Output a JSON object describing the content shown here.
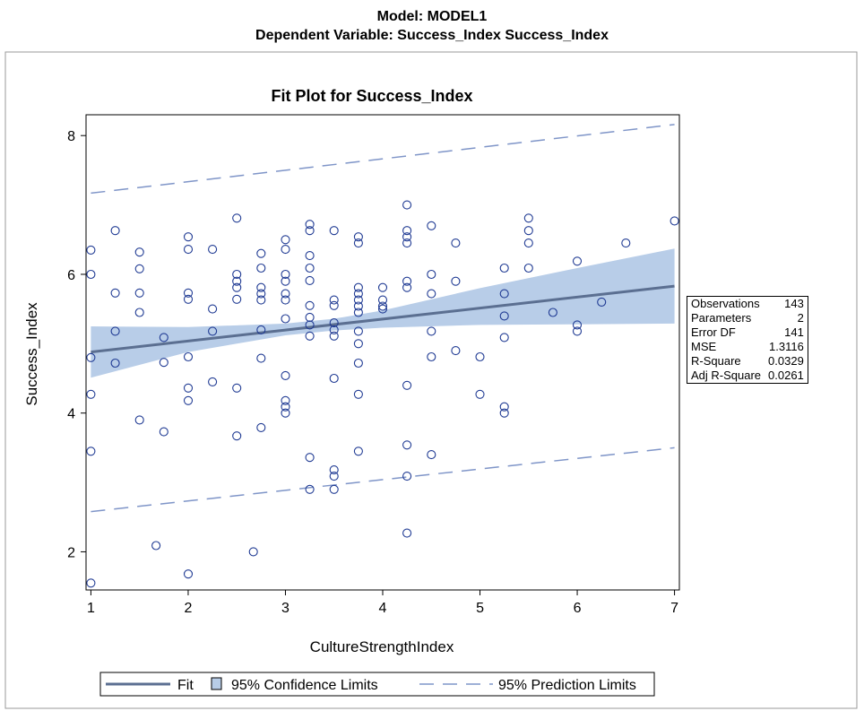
{
  "header": {
    "line1": "Model: MODEL1",
    "line2": "Dependent Variable: Success_Index Success_Index"
  },
  "chart_data": {
    "type": "scatter",
    "title": "Fit Plot for Success_Index",
    "xlabel": "CultureStrengthIndex",
    "ylabel": "Success_Index",
    "xlim": [
      0.95,
      7.05
    ],
    "ylim": [
      1.45,
      8.3
    ],
    "xticks": [
      "1",
      "2",
      "3",
      "4",
      "5",
      "6",
      "7"
    ],
    "yticks": [
      "2",
      "4",
      "6",
      "8"
    ],
    "grid": false,
    "legend_position": "bottom",
    "colors": {
      "points": "#1f3a93",
      "fit": "#5b6f91",
      "confidence": "#b8cde8",
      "prediction": "#7f95c8"
    },
    "points": [
      [
        1,
        6.35
      ],
      [
        1,
        6.0
      ],
      [
        1,
        4.8
      ],
      [
        1,
        4.27
      ],
      [
        1,
        3.45
      ],
      [
        1,
        1.55
      ],
      [
        1.25,
        6.63
      ],
      [
        1.25,
        5.73
      ],
      [
        1.25,
        5.18
      ],
      [
        1.25,
        4.72
      ],
      [
        1.5,
        6.32
      ],
      [
        1.5,
        6.08
      ],
      [
        1.5,
        5.73
      ],
      [
        1.5,
        5.45
      ],
      [
        1.5,
        3.9
      ],
      [
        1.67,
        2.09
      ],
      [
        1.75,
        5.09
      ],
      [
        1.75,
        4.73
      ],
      [
        1.75,
        3.73
      ],
      [
        2,
        6.54
      ],
      [
        2,
        6.36
      ],
      [
        2,
        5.73
      ],
      [
        2,
        5.64
      ],
      [
        2,
        4.81
      ],
      [
        2,
        4.36
      ],
      [
        2,
        4.18
      ],
      [
        2,
        1.68
      ],
      [
        2.25,
        6.36
      ],
      [
        2.25,
        5.5
      ],
      [
        2.25,
        5.18
      ],
      [
        2.25,
        4.45
      ],
      [
        2.5,
        6.81
      ],
      [
        2.5,
        6.0
      ],
      [
        2.5,
        5.9
      ],
      [
        2.5,
        5.81
      ],
      [
        2.5,
        5.64
      ],
      [
        2.5,
        4.36
      ],
      [
        2.5,
        3.67
      ],
      [
        2.67,
        2.0
      ],
      [
        2.75,
        6.3
      ],
      [
        2.75,
        6.09
      ],
      [
        2.75,
        5.81
      ],
      [
        2.75,
        5.72
      ],
      [
        2.75,
        5.63
      ],
      [
        2.75,
        5.2
      ],
      [
        2.75,
        4.79
      ],
      [
        2.75,
        3.79
      ],
      [
        3,
        6.5
      ],
      [
        3,
        6.36
      ],
      [
        3,
        6.0
      ],
      [
        3,
        5.9
      ],
      [
        3,
        5.72
      ],
      [
        3,
        5.63
      ],
      [
        3,
        5.36
      ],
      [
        3,
        4.54
      ],
      [
        3,
        4.18
      ],
      [
        3,
        4.09
      ],
      [
        3,
        4.0
      ],
      [
        3.25,
        6.72
      ],
      [
        3.25,
        6.63
      ],
      [
        3.25,
        6.27
      ],
      [
        3.25,
        6.09
      ],
      [
        3.25,
        5.91
      ],
      [
        3.25,
        5.55
      ],
      [
        3.25,
        5.38
      ],
      [
        3.25,
        5.27
      ],
      [
        3.25,
        5.11
      ],
      [
        3.25,
        3.36
      ],
      [
        3.25,
        2.9
      ],
      [
        3.5,
        6.63
      ],
      [
        3.5,
        5.63
      ],
      [
        3.5,
        5.55
      ],
      [
        3.5,
        5.3
      ],
      [
        3.5,
        5.2
      ],
      [
        3.5,
        5.11
      ],
      [
        3.5,
        4.5
      ],
      [
        3.5,
        3.18
      ],
      [
        3.5,
        3.09
      ],
      [
        3.5,
        2.9
      ],
      [
        3.75,
        6.54
      ],
      [
        3.75,
        6.45
      ],
      [
        3.75,
        5.81
      ],
      [
        3.75,
        5.72
      ],
      [
        3.75,
        5.63
      ],
      [
        3.75,
        5.54
      ],
      [
        3.75,
        5.45
      ],
      [
        3.75,
        5.18
      ],
      [
        3.75,
        5.0
      ],
      [
        3.75,
        4.72
      ],
      [
        3.75,
        4.27
      ],
      [
        3.75,
        3.45
      ],
      [
        4,
        5.81
      ],
      [
        4,
        5.63
      ],
      [
        4,
        5.54
      ],
      [
        4,
        5.5
      ],
      [
        4.25,
        7.0
      ],
      [
        4.25,
        6.63
      ],
      [
        4.25,
        6.54
      ],
      [
        4.25,
        6.45
      ],
      [
        4.25,
        5.9
      ],
      [
        4.25,
        5.81
      ],
      [
        4.25,
        4.4
      ],
      [
        4.25,
        3.54
      ],
      [
        4.25,
        3.09
      ],
      [
        4.25,
        2.27
      ],
      [
        4.5,
        6.7
      ],
      [
        4.5,
        6.0
      ],
      [
        4.5,
        5.72
      ],
      [
        4.5,
        5.18
      ],
      [
        4.5,
        4.81
      ],
      [
        4.5,
        3.4
      ],
      [
        4.75,
        6.45
      ],
      [
        4.75,
        5.9
      ],
      [
        4.75,
        4.9
      ],
      [
        5,
        4.81
      ],
      [
        5,
        4.27
      ],
      [
        5.25,
        6.09
      ],
      [
        5.25,
        5.72
      ],
      [
        5.25,
        5.4
      ],
      [
        5.25,
        5.09
      ],
      [
        5.25,
        4.09
      ],
      [
        5.25,
        4.0
      ],
      [
        5.5,
        6.81
      ],
      [
        5.5,
        6.63
      ],
      [
        5.5,
        6.45
      ],
      [
        5.5,
        6.09
      ],
      [
        5.75,
        5.45
      ],
      [
        6,
        6.19
      ],
      [
        6,
        5.27
      ],
      [
        6,
        5.18
      ],
      [
        6.25,
        5.6
      ],
      [
        6.5,
        6.45
      ],
      [
        7,
        6.77
      ]
    ],
    "fit": {
      "x": [
        1,
        7
      ],
      "y": [
        4.88,
        5.83
      ]
    },
    "confidence_band": {
      "x": [
        1,
        2,
        3,
        3.5,
        4,
        5,
        6,
        7
      ],
      "lower": [
        4.51,
        4.88,
        5.12,
        5.19,
        5.23,
        5.27,
        5.28,
        5.29
      ],
      "upper": [
        5.25,
        5.24,
        5.29,
        5.36,
        5.48,
        5.8,
        6.09,
        6.37
      ]
    },
    "prediction_limits": {
      "x": [
        1,
        7
      ],
      "lower": [
        2.58,
        3.5
      ],
      "upper": [
        7.17,
        8.16
      ]
    },
    "legend": {
      "fit": "Fit",
      "confidence": "95% Confidence Limits",
      "prediction": "95% Prediction Limits"
    },
    "stats": [
      {
        "label": "Observations",
        "value": "143"
      },
      {
        "label": "Parameters",
        "value": "2"
      },
      {
        "label": "Error DF",
        "value": "141"
      },
      {
        "label": "MSE",
        "value": "1.3116"
      },
      {
        "label": "R-Square",
        "value": "0.0329"
      },
      {
        "label": "Adj R-Square",
        "value": "0.0261"
      }
    ]
  }
}
